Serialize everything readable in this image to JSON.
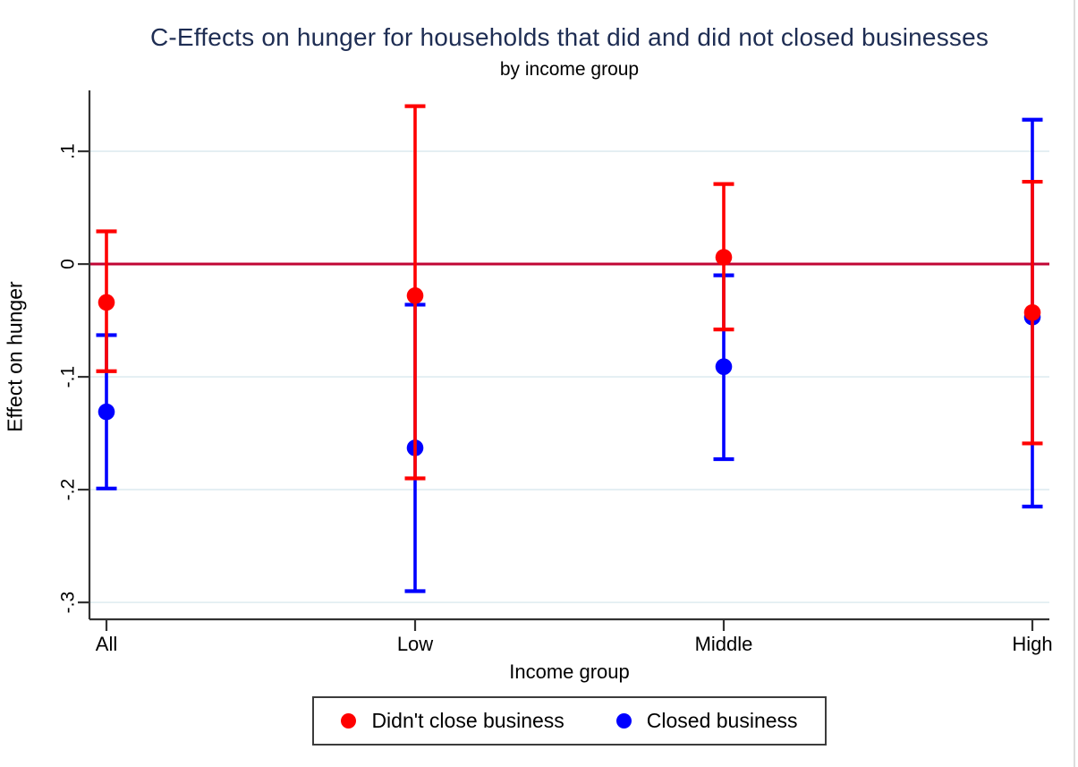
{
  "title": "C-Effects on hunger for households that did and did not closed businesses",
  "subtitle": "by income group",
  "x_axis_title": "Income group",
  "y_axis_title": "Effect on hunger",
  "colors": {
    "title_text": "#1e2d53",
    "series_red": "#ff0000",
    "series_blue": "#0000ff",
    "zero_line": "#c10534",
    "axis": "#333333",
    "gridline": "#e3eef2",
    "tick_label": "#000000"
  },
  "legend": [
    {
      "label": "Didn't close business",
      "color_key": "series_red"
    },
    {
      "label": "Closed business",
      "color_key": "series_blue"
    }
  ],
  "chart_data": {
    "type": "scatter",
    "subtype": "coefplot-with-ci",
    "title": "C-Effects on hunger for households that did and did not closed businesses",
    "subtitle": "by income group",
    "xlabel": "Income group",
    "ylabel": "Effect on hunger",
    "categories": [
      "All",
      "Low",
      "Middle",
      "High"
    ],
    "series": [
      {
        "name": "Didn't close business",
        "color_key": "series_red",
        "values": [
          -0.034,
          -0.028,
          0.006,
          -0.043
        ],
        "ci_low": [
          -0.095,
          -0.19,
          -0.058,
          -0.159
        ],
        "ci_high": [
          0.029,
          0.14,
          0.071,
          0.073
        ]
      },
      {
        "name": "Closed business",
        "color_key": "series_blue",
        "values": [
          -0.131,
          -0.163,
          -0.091,
          -0.047
        ],
        "ci_low": [
          -0.199,
          -0.29,
          -0.173,
          -0.215
        ],
        "ci_high": [
          -0.063,
          -0.036,
          -0.01,
          0.128
        ]
      }
    ],
    "yticks": {
      "values": [
        0.1,
        0,
        -0.1,
        -0.2,
        -0.3
      ],
      "labels": [
        ".1",
        "0",
        "-.1",
        "-.2",
        "-.3"
      ]
    },
    "ylim": [
      -0.315,
      0.154
    ],
    "ref_line_y": 0,
    "grid": true,
    "legend_position": "bottom"
  }
}
